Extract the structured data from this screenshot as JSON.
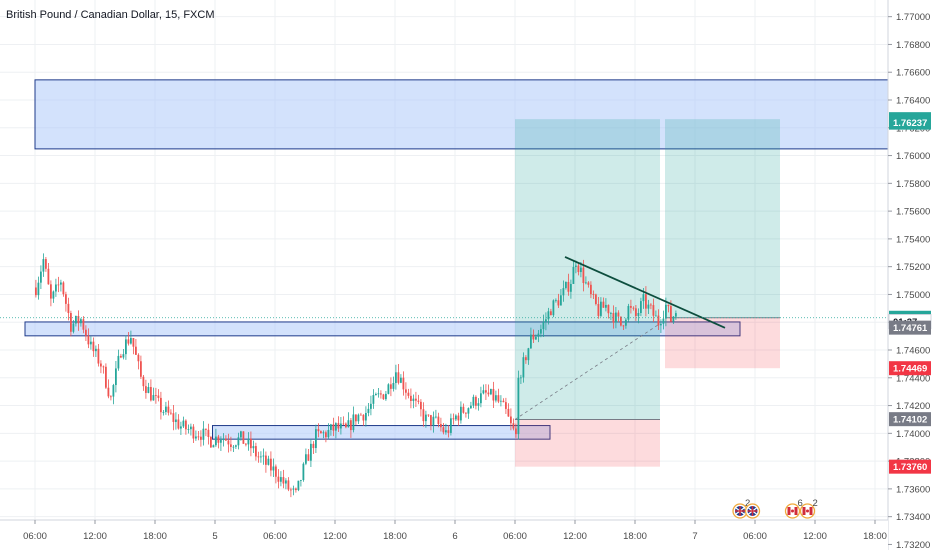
{
  "chart_data": {
    "type": "candlestick",
    "title": "British Pound / Canadian Dollar, 15, FXCM",
    "symbol": "British Pound / Canadian Dollar",
    "timeframe": "15",
    "source": "FXCM",
    "ylim": [
      1.7316,
      1.7712
    ],
    "y_ticks": [
      "1.77000",
      "1.76800",
      "1.76600",
      "1.76400",
      "1.76200",
      "1.76000",
      "1.75800",
      "1.75600",
      "1.75400",
      "1.75200",
      "1.75000",
      "1.74800",
      "1.74600",
      "1.74400",
      "1.74200",
      "1.74000",
      "1.73800",
      "1.73600",
      "1.73400",
      "1.73200"
    ],
    "x_ticks": [
      {
        "label": "06:00",
        "bar": 0
      },
      {
        "label": "12:00",
        "bar": 24
      },
      {
        "label": "18:00",
        "bar": 48
      },
      {
        "label": "5",
        "bar": 72
      },
      {
        "label": "06:00",
        "bar": 96
      },
      {
        "label": "12:00",
        "bar": 120
      },
      {
        "label": "18:00",
        "bar": 144
      },
      {
        "label": "6",
        "bar": 168
      },
      {
        "label": "06:00",
        "bar": 192
      },
      {
        "label": "12:00",
        "bar": 216
      },
      {
        "label": "18:00",
        "bar": 240
      },
      {
        "label": "7",
        "bar": 264
      },
      {
        "label": "06:00",
        "bar": 288
      },
      {
        "label": "12:00",
        "bar": 312
      },
      {
        "label": "18:00",
        "bar": 336
      }
    ],
    "price_path": [
      [
        0,
        1.7505
      ],
      [
        3,
        1.7525
      ],
      [
        6,
        1.7495
      ],
      [
        10,
        1.751
      ],
      [
        14,
        1.7478
      ],
      [
        18,
        1.7482
      ],
      [
        22,
        1.7462
      ],
      [
        26,
        1.745
      ],
      [
        30,
        1.7425
      ],
      [
        34,
        1.746
      ],
      [
        38,
        1.747
      ],
      [
        42,
        1.744
      ],
      [
        46,
        1.7428
      ],
      [
        50,
        1.7418
      ],
      [
        54,
        1.7412
      ],
      [
        58,
        1.7405
      ],
      [
        62,
        1.7402
      ],
      [
        66,
        1.74
      ],
      [
        70,
        1.7395
      ],
      [
        74,
        1.7398
      ],
      [
        78,
        1.7394
      ],
      [
        82,
        1.7396
      ],
      [
        86,
        1.739
      ],
      [
        88,
        1.7385
      ],
      [
        92,
        1.7378
      ],
      [
        96,
        1.7372
      ],
      [
        100,
        1.7362
      ],
      [
        104,
        1.7355
      ],
      [
        108,
        1.738
      ],
      [
        112,
        1.7398
      ],
      [
        116,
        1.74
      ],
      [
        120,
        1.7404
      ],
      [
        124,
        1.7402
      ],
      [
        128,
        1.7412
      ],
      [
        132,
        1.7415
      ],
      [
        136,
        1.7425
      ],
      [
        140,
        1.743
      ],
      [
        144,
        1.7445
      ],
      [
        148,
        1.7432
      ],
      [
        152,
        1.742
      ],
      [
        156,
        1.741
      ],
      [
        160,
        1.7408
      ],
      [
        164,
        1.74
      ],
      [
        168,
        1.7412
      ],
      [
        172,
        1.7418
      ],
      [
        176,
        1.7424
      ],
      [
        180,
        1.7428
      ],
      [
        184,
        1.7425
      ],
      [
        188,
        1.7415
      ],
      [
        190,
        1.7405
      ],
      [
        192,
        1.7398
      ],
      [
        193,
        1.742
      ],
      [
        195,
        1.745
      ],
      [
        198,
        1.7468
      ],
      [
        202,
        1.7475
      ],
      [
        206,
        1.749
      ],
      [
        210,
        1.7498
      ],
      [
        214,
        1.751
      ],
      [
        216,
        1.7525
      ],
      [
        219,
        1.7512
      ],
      [
        222,
        1.7498
      ],
      [
        225,
        1.7488
      ],
      [
        228,
        1.7492
      ],
      [
        231,
        1.7485
      ],
      [
        234,
        1.7478
      ],
      [
        237,
        1.749
      ],
      [
        240,
        1.7484
      ],
      [
        243,
        1.7495
      ],
      [
        246,
        1.7488
      ],
      [
        249,
        1.748
      ],
      [
        252,
        1.7492
      ],
      [
        254,
        1.7482
      ],
      [
        256,
        1.7488
      ]
    ],
    "zones": [
      {
        "type": "supply",
        "y1": 1.76545,
        "y2": 1.76048,
        "x_start_bar": 0,
        "x_end_bar": 360
      },
      {
        "type": "support",
        "y1": 1.74802,
        "y2": 1.74702,
        "x_start_bar": -4,
        "x_end_bar": 282
      },
      {
        "type": "support",
        "y1": 1.74056,
        "y2": 1.73958,
        "x_start_bar": 71,
        "x_end_bar": 206
      }
    ],
    "long_positions": [
      {
        "entry": 1.741,
        "target": 1.76262,
        "stop": 1.7376,
        "x_start_bar": 192,
        "x_end_bar": 250
      }
    ],
    "short_positions": [
      {
        "entry": 1.74832,
        "target": 1.76262,
        "stop": 1.74469,
        "x_start_bar": 252,
        "x_end_bar": 298,
        "target_color": "teal",
        "stop_color": "red"
      }
    ],
    "trendline": {
      "x1_bar": 212,
      "y1": 1.7527,
      "x2_bar": 276,
      "y2": 1.7476
    },
    "dashed_line": {
      "x1_bar": 192,
      "y1": 1.741,
      "x2_bar": 250,
      "y2": 1.7479
    },
    "current_price_line": 1.74832,
    "price_tags": [
      {
        "label": "1.76262",
        "color": "#26a69a",
        "price": 1.76262
      },
      {
        "label": "1.76237",
        "color": "#26a69a",
        "price": 1.76237
      },
      {
        "label": "1.74832",
        "color": "#26a69a",
        "price": 1.74832
      },
      {
        "label": "01:37",
        "color": "#ffffff",
        "price": 1.74805,
        "text": "dark"
      },
      {
        "label": "1.74761",
        "color": "#787b86",
        "price": 1.74761
      },
      {
        "label": "1.74469",
        "color": "#f23645",
        "price": 1.74469
      },
      {
        "label": "1.74102",
        "color": "#787b86",
        "price": 1.74102
      },
      {
        "label": "1.73760",
        "color": "#f23645",
        "price": 1.7376
      }
    ],
    "events": [
      {
        "kind": "gb-flag-icon",
        "count": "2",
        "bar": 282
      },
      {
        "kind": "gb-flag-icon",
        "count": "",
        "bar": 287
      },
      {
        "kind": "ca-flag-icon",
        "count": "6",
        "bar": 303
      },
      {
        "kind": "ca-flag-icon",
        "count": "2",
        "bar": 309
      }
    ],
    "colors": {
      "up": "#26a69a",
      "down": "#ef5350",
      "grid": "#eef0f3",
      "zone_fill": "#aecbfa",
      "zone_stroke": "#1e3a8a",
      "target_fill": "#26a69a",
      "stop_fill": "#f23645",
      "trendline": "#0d4e3e",
      "price_line": "#26a69a"
    }
  }
}
